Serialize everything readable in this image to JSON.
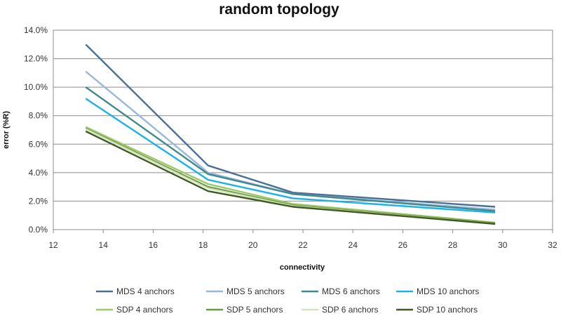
{
  "chart_data": {
    "type": "line",
    "title": "random topology",
    "xlabel": "connectivity",
    "ylabel": "error (%R)",
    "xlim": [
      12,
      32
    ],
    "ylim": [
      0,
      14
    ],
    "x_ticks": [
      "12",
      "14",
      "16",
      "18",
      "20",
      "22",
      "24",
      "26",
      "28",
      "30",
      "32"
    ],
    "y_ticks": [
      "0.0%",
      "2.0%",
      "4.0%",
      "6.0%",
      "8.0%",
      "10.0%",
      "12.0%",
      "14.0%"
    ],
    "grid": "horizontal",
    "legend_position": "bottom",
    "x": [
      13.3,
      18.2,
      21.6,
      29.7
    ],
    "series": [
      {
        "name": "MDS 4 anchors",
        "color": "#4a6f97",
        "values": [
          13.0,
          4.5,
          2.6,
          1.6
        ]
      },
      {
        "name": "MDS 5 anchors",
        "color": "#96b7de",
        "values": [
          11.1,
          4.0,
          2.5,
          1.4
        ]
      },
      {
        "name": "MDS 6 anchors",
        "color": "#3e8a8a",
        "values": [
          10.0,
          3.9,
          2.5,
          1.3
        ]
      },
      {
        "name": "MDS 10 anchors",
        "color": "#1ab2e8",
        "values": [
          9.2,
          3.5,
          2.2,
          1.2
        ]
      },
      {
        "name": "SDP 4 anchors",
        "color": "#9bc86a",
        "values": [
          7.2,
          3.2,
          1.8,
          0.5
        ]
      },
      {
        "name": "SDP 5 anchors",
        "color": "#6a9a40",
        "values": [
          7.1,
          3.0,
          1.7,
          0.45
        ]
      },
      {
        "name": "SDP 6 anchors",
        "color": "#d4e4bc",
        "values": [
          7.05,
          2.9,
          1.65,
          0.4
        ]
      },
      {
        "name": "SDP 10 anchors",
        "color": "#3f5a22",
        "values": [
          6.9,
          2.7,
          1.6,
          0.4
        ]
      }
    ]
  }
}
